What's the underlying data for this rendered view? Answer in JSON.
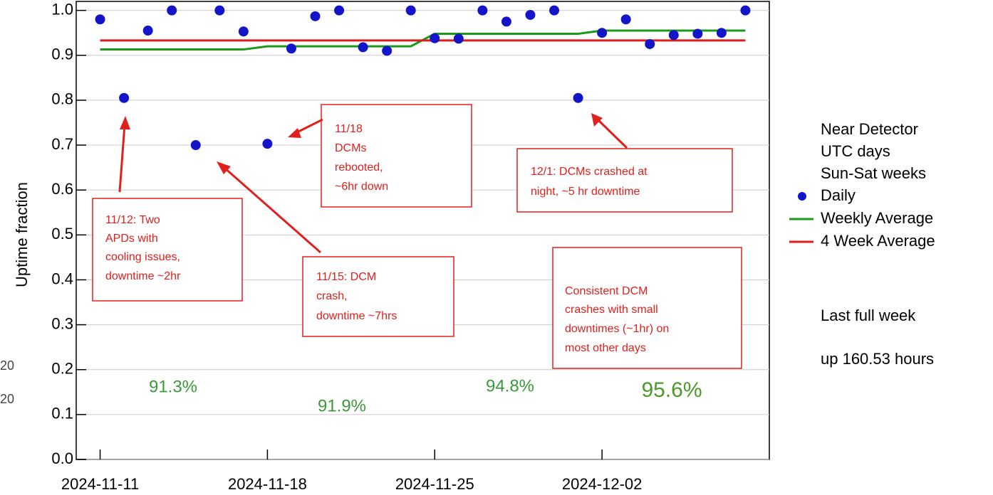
{
  "chart_data": {
    "type": "scatter",
    "y_label": "Uptime fraction",
    "x": [
      "2024-11-11",
      "2024-11-12",
      "2024-11-13",
      "2024-11-14",
      "2024-11-15",
      "2024-11-16",
      "2024-11-17",
      "2024-11-18",
      "2024-11-19",
      "2024-11-20",
      "2024-11-21",
      "2024-11-22",
      "2024-11-23",
      "2024-11-24",
      "2024-11-25",
      "2024-11-26",
      "2024-11-27",
      "2024-11-28",
      "2024-11-29",
      "2024-11-30",
      "2024-12-01",
      "2024-12-02",
      "2024-12-03",
      "2024-12-04",
      "2024-12-05",
      "2024-12-06",
      "2024-12-07",
      "2024-12-08"
    ],
    "series": [
      {
        "name": "Daily",
        "color": "#1414c8",
        "values": [
          0.98,
          0.805,
          0.955,
          1.0,
          0.7,
          1.0,
          0.953,
          0.703,
          0.915,
          0.987,
          1.0,
          0.918,
          0.91,
          1.0,
          0.938,
          0.937,
          1.0,
          0.975,
          0.99,
          1.0,
          0.805,
          0.95,
          0.98,
          0.925,
          0.945,
          0.948,
          0.95,
          1.0
        ]
      },
      {
        "name": "Weekly Average",
        "color": "#1a9a1a",
        "type": "line",
        "x": [
          "2024-11-11",
          "2024-11-17",
          "2024-11-18",
          "2024-11-24",
          "2024-11-25",
          "2024-12-01",
          "2024-12-02",
          "2024-12-08"
        ],
        "values": [
          0.913,
          0.913,
          0.92,
          0.92,
          0.948,
          0.948,
          0.955,
          0.955
        ]
      },
      {
        "name": "4 Week Average",
        "color": "#dd1c1c",
        "type": "line",
        "x": [
          "2024-11-11",
          "2024-12-08"
        ],
        "values": [
          0.933,
          0.933
        ]
      }
    ],
    "xlim": [
      "2024-11-10",
      "2024-12-09"
    ],
    "xticks": [
      "2024-11-11",
      "2024-11-18",
      "2024-11-25",
      "2024-12-02"
    ],
    "ylim": [
      0,
      1.02
    ],
    "yticks": [
      {
        "value": 0,
        "label": "0.0"
      },
      0.1,
      0.2,
      0.3,
      0.4,
      0.5,
      0.6,
      0.7,
      0.8,
      0.9,
      {
        "value": 1,
        "label": "1.0"
      }
    ],
    "grid": true,
    "legend_title": [
      "Near Detector",
      "UTC days",
      "Sun-Sat weeks"
    ],
    "week_labels": [
      "91.3%",
      "91.9%",
      "94.8%",
      "95.6%"
    ],
    "summary": [
      "Last full week",
      "up 160.53 hours"
    ],
    "side_labels": [
      "20",
      "20"
    ],
    "annotations": [
      {
        "lines": [
          "11/12: Two",
          "APDs with",
          "cooling issues,",
          "downtime ~2hr"
        ]
      },
      {
        "lines": [
          "11/15: DCM",
          "crash,",
          "downtime ~7hrs"
        ]
      },
      {
        "lines": [
          "11/18",
          "DCMs",
          "rebooted,",
          "~6hr down"
        ]
      },
      {
        "lines": [
          "12/1: DCMs crashed at",
          "night, ~5 hr downtime"
        ]
      },
      {
        "lines": [
          "Consistent DCM",
          "crashes with small",
          "downtimes (~1hr) on",
          "most other days"
        ]
      }
    ]
  }
}
